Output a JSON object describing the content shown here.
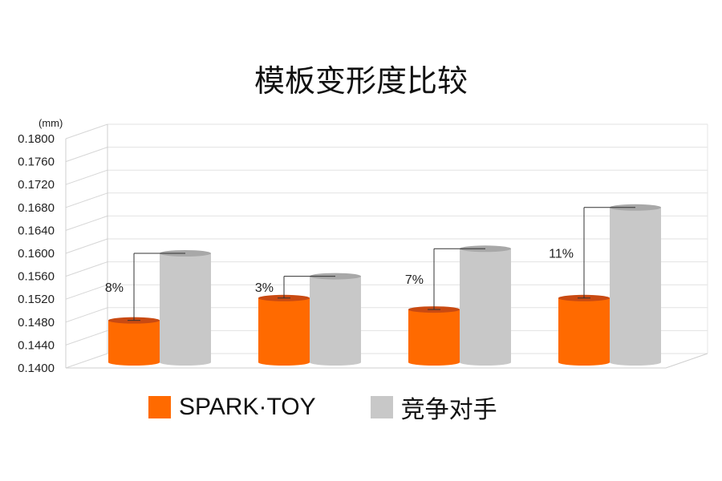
{
  "chart_data": {
    "type": "bar",
    "title": "模板变形度比较",
    "unit_label": "(mm)",
    "ylim": [
      0.14,
      0.18
    ],
    "y_ticks": [
      "0.1400",
      "0.1440",
      "0.1480",
      "0.1520",
      "0.1560",
      "0.1600",
      "0.1640",
      "0.1680",
      "0.1720",
      "0.1760",
      "0.1800"
    ],
    "groups": 4,
    "series": [
      {
        "name": "SPARK·TOY",
        "color": "#ff6a00",
        "values": [
          0.1483,
          0.1522,
          0.1502,
          0.1522
        ]
      },
      {
        "name": "竞争对手",
        "color": "#c8c8c8",
        "values": [
          0.16,
          0.156,
          0.1608,
          0.168
        ]
      }
    ],
    "annotations": [
      "8%",
      "3%",
      "7%",
      "11%"
    ],
    "grid": true,
    "legend_position": "bottom"
  }
}
